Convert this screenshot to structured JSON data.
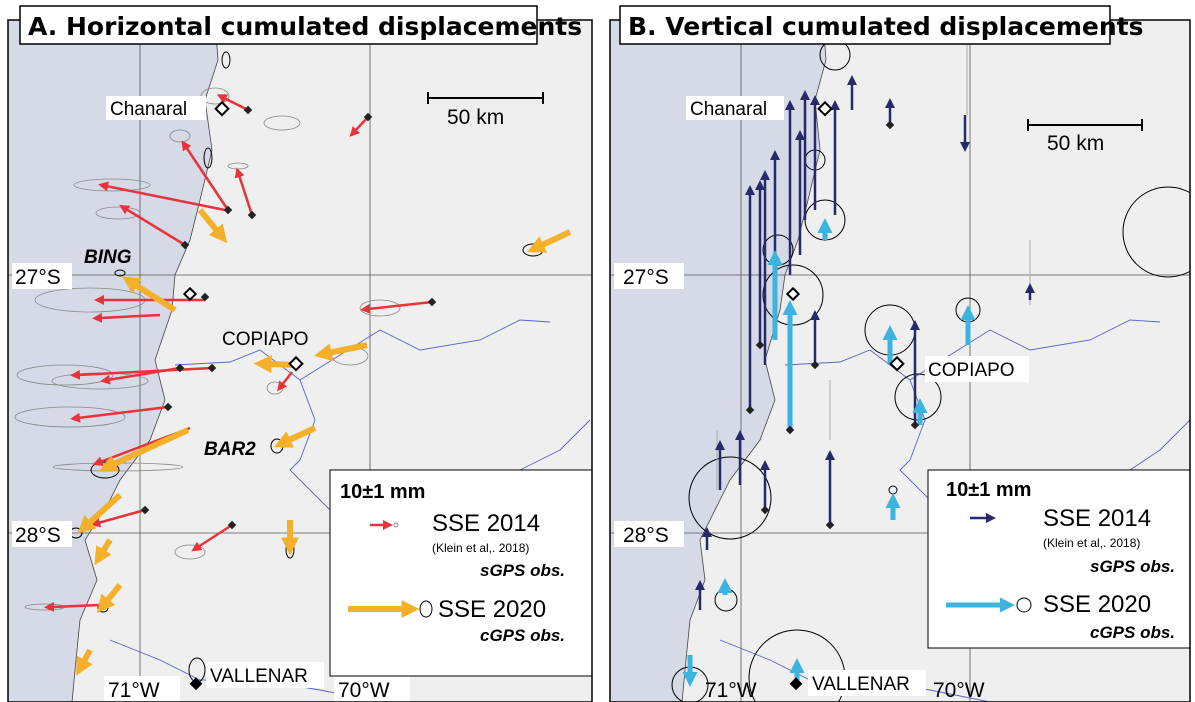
{
  "panels": [
    {
      "title": "A. Horizontal cumulated displacements",
      "labels": [
        "Chanaral",
        "50 km",
        "BING",
        "27°S",
        "COPIAPO",
        "BAR2",
        "28°S",
        "71°W",
        "VALLENAR",
        "70°W"
      ],
      "legend": {
        "scale": "10±1 mm",
        "entries": [
          {
            "name": "SSE 2014",
            "note": "(Klein et al,. 2018)",
            "obs": "sGPS obs."
          },
          {
            "name": "SSE 2020",
            "obs": "cGPS obs."
          }
        ]
      }
    },
    {
      "title": "B. Vertical cumulated displacements",
      "labels": [
        "Chanaral",
        "50 km",
        "27°S",
        "COPIAPO",
        "28°S",
        "71°W",
        "VALLENAR",
        "70°W"
      ],
      "legend": {
        "scale": "10±1 mm",
        "entries": [
          {
            "name": "SSE 2014",
            "note": "(Klein et al,. 2018)",
            "obs": "sGPS obs."
          },
          {
            "name": "SSE 2020",
            "obs": "cGPS obs."
          }
        ]
      }
    }
  ]
}
